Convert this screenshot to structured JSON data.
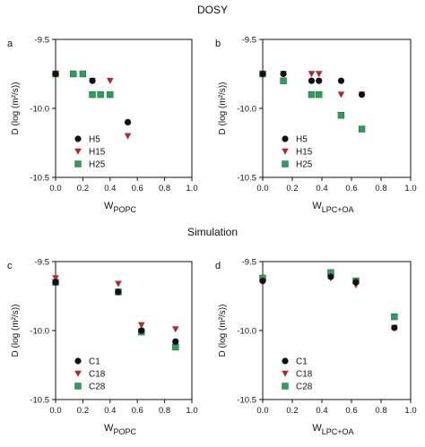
{
  "figure": {
    "top_title": "DOSY",
    "bottom_title": "Simulation"
  },
  "colors": {
    "black": "#111111",
    "red": "#b2282d",
    "green": "#2e9e5e",
    "red_text": "#b2282d",
    "green_text": "#2e9e5e"
  },
  "chart_data": [
    {
      "panel": "a",
      "type": "scatter",
      "xlabel_main": "W",
      "xlabel_sub": "POPC",
      "ylabel": "D (log (m²/s))",
      "xlim": [
        0.0,
        1.0
      ],
      "ylim": [
        -10.5,
        -9.5
      ],
      "xticks": [
        "0.0",
        "0.2",
        "0.4",
        "0.6",
        "0.8",
        "1.0"
      ],
      "yticks": [
        "-9.5",
        "-10.0",
        "-10.5"
      ],
      "legend_position": "bottom-left",
      "series": [
        {
          "name": "H5",
          "marker": "circle",
          "color": "black",
          "points": [
            [
              0.0,
              -9.75
            ],
            [
              0.27,
              -9.8
            ],
            [
              0.53,
              -10.1
            ]
          ]
        },
        {
          "name": "H15",
          "marker": "triangle-down",
          "color": "red",
          "points": [
            [
              0.0,
              -9.75
            ],
            [
              0.27,
              -9.8
            ],
            [
              0.4,
              -9.8
            ],
            [
              0.53,
              -10.2
            ]
          ]
        },
        {
          "name": "H25",
          "marker": "square",
          "color": "green",
          "points": [
            [
              0.0,
              -9.75
            ],
            [
              0.13,
              -9.75
            ],
            [
              0.2,
              -9.75
            ],
            [
              0.27,
              -9.9
            ],
            [
              0.33,
              -9.9
            ],
            [
              0.4,
              -9.9
            ]
          ]
        }
      ]
    },
    {
      "panel": "b",
      "type": "scatter",
      "xlabel_main": "W",
      "xlabel_sub": "LPC+OA",
      "ylabel": "D (log (m²/s))",
      "xlim": [
        0.0,
        1.0
      ],
      "ylim": [
        -10.5,
        -9.5
      ],
      "xticks": [
        "0.0",
        "0.2",
        "0.4",
        "0.6",
        "0.8",
        "1.0"
      ],
      "yticks": [
        "-9.5",
        "-10.0",
        "-10.5"
      ],
      "legend_position": "bottom-left",
      "series": [
        {
          "name": "H5",
          "marker": "circle",
          "color": "black",
          "points": [
            [
              0.0,
              -9.75
            ],
            [
              0.14,
              -9.75
            ],
            [
              0.33,
              -9.8
            ],
            [
              0.38,
              -9.8
            ],
            [
              0.53,
              -9.8
            ],
            [
              0.67,
              -9.9
            ]
          ]
        },
        {
          "name": "H15",
          "marker": "triangle-down",
          "color": "red",
          "points": [
            [
              0.0,
              -9.75
            ],
            [
              0.14,
              -9.75
            ],
            [
              0.33,
              -9.75
            ],
            [
              0.38,
              -9.75
            ],
            [
              0.53,
              -9.9
            ],
            [
              0.67,
              -9.9
            ]
          ]
        },
        {
          "name": "H25",
          "marker": "square",
          "color": "green",
          "points": [
            [
              0.0,
              -9.75
            ],
            [
              0.14,
              -9.8
            ],
            [
              0.33,
              -9.9
            ],
            [
              0.38,
              -9.9
            ],
            [
              0.53,
              -10.05
            ],
            [
              0.67,
              -10.15
            ]
          ]
        }
      ]
    },
    {
      "panel": "c",
      "type": "scatter",
      "xlabel_main": "W",
      "xlabel_sub": "POPC",
      "ylabel": "D (log (m²/s))",
      "xlim": [
        0.0,
        1.0
      ],
      "ylim": [
        -10.5,
        -9.5
      ],
      "xticks": [
        "0.0",
        "0.2",
        "0.4",
        "0.6",
        "0.8",
        "1.0"
      ],
      "yticks": [
        "-9.5",
        "-10.0",
        "-10.5"
      ],
      "legend_position": "bottom-left",
      "series": [
        {
          "name": "C1",
          "marker": "circle",
          "color": "black",
          "points": [
            [
              0.0,
              -9.65
            ],
            [
              0.46,
              -9.72
            ],
            [
              0.63,
              -10.0
            ],
            [
              0.88,
              -10.08
            ]
          ]
        },
        {
          "name": "C18",
          "marker": "triangle-down",
          "color": "red",
          "points": [
            [
              0.0,
              -9.62
            ],
            [
              0.46,
              -9.66
            ],
            [
              0.63,
              -9.96
            ],
            [
              0.88,
              -9.99
            ]
          ]
        },
        {
          "name": "C28",
          "marker": "square",
          "color": "green",
          "points": [
            [
              0.0,
              -9.65
            ],
            [
              0.46,
              -9.72
            ],
            [
              0.63,
              -10.01
            ],
            [
              0.88,
              -10.12
            ]
          ]
        }
      ]
    },
    {
      "panel": "d",
      "type": "scatter",
      "xlabel_main": "W",
      "xlabel_sub": "LPC+OA",
      "ylabel": "D (log (m²/s))",
      "xlim": [
        0.0,
        1.0
      ],
      "ylim": [
        -10.5,
        -9.5
      ],
      "xticks": [
        "0.0",
        "0.2",
        "0.4",
        "0.6",
        "0.8",
        "1.0"
      ],
      "yticks": [
        "-9.5",
        "-10.0",
        "-10.5"
      ],
      "legend_position": "bottom-left",
      "series": [
        {
          "name": "C1",
          "marker": "circle",
          "color": "black",
          "points": [
            [
              0.0,
              -9.64
            ],
            [
              0.46,
              -9.61
            ],
            [
              0.63,
              -9.65
            ],
            [
              0.89,
              -9.98
            ]
          ]
        },
        {
          "name": "C18",
          "marker": "triangle-down",
          "color": "red",
          "points": [
            [
              0.0,
              -9.65
            ],
            [
              0.46,
              -9.62
            ],
            [
              0.63,
              -9.67
            ],
            [
              0.89,
              -9.98
            ]
          ]
        },
        {
          "name": "C28",
          "marker": "square",
          "color": "green",
          "points": [
            [
              0.0,
              -9.62
            ],
            [
              0.46,
              -9.58
            ],
            [
              0.63,
              -9.64
            ],
            [
              0.89,
              -9.9
            ]
          ]
        }
      ]
    }
  ]
}
